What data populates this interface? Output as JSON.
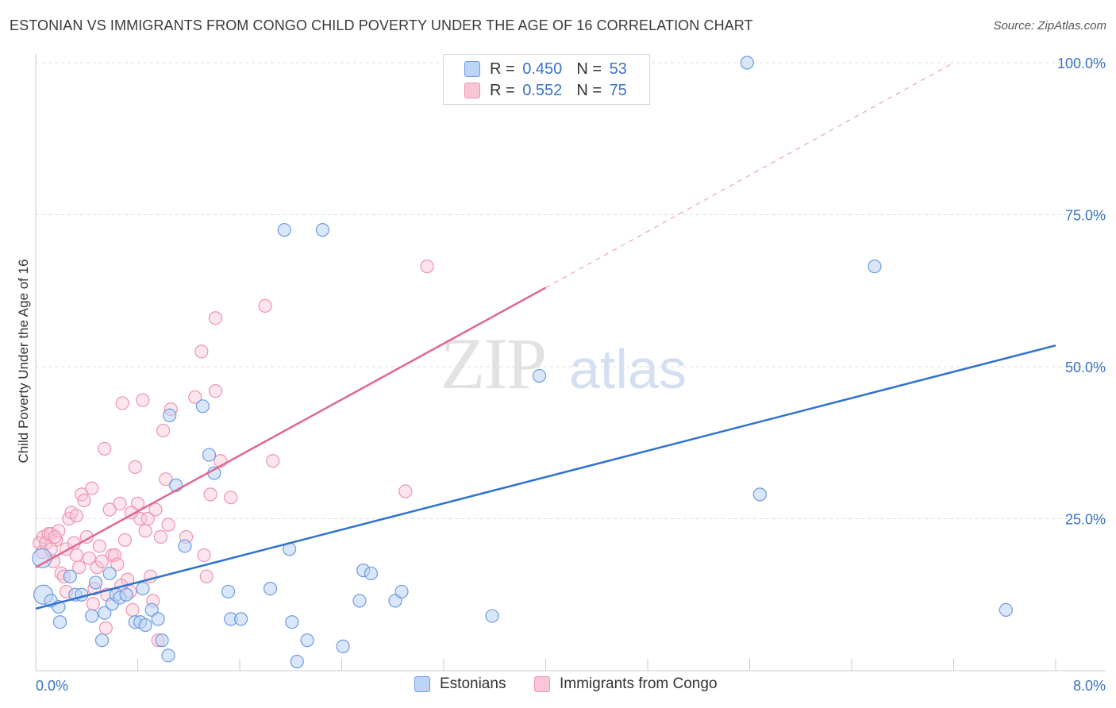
{
  "title": "ESTONIAN VS IMMIGRANTS FROM CONGO CHILD POVERTY UNDER THE AGE OF 16 CORRELATION CHART",
  "source": "Source: ZipAtlas.com",
  "watermark": {
    "zip": "ZIP",
    "atlas": "atlas"
  },
  "legend": {
    "rows": [
      {
        "r_label": "R =",
        "r_value": "0.450",
        "n_label": "N =",
        "n_value": "53"
      },
      {
        "r_label": "R =",
        "r_value": "0.552",
        "n_label": "N =",
        "n_value": "75"
      }
    ]
  },
  "bottom_legend": [
    "Estonians",
    "Immigrants from Congo"
  ],
  "colors": {
    "blue_fill": "#bcd4f5",
    "blue_stroke": "#6d9be0",
    "blue_line": "#2f72cf",
    "pink_fill": "#f9c6d6",
    "pink_stroke": "#ee93b1",
    "pink_line": "#e0688f",
    "axis_text": "#3a73c6",
    "grid": "#dcdcdc"
  },
  "chart_data": {
    "type": "scatter",
    "title": "ESTONIAN VS IMMIGRANTS FROM CONGO CHILD POVERTY UNDER THE AGE OF 16 CORRELATION CHART",
    "xlabel": "",
    "ylabel": "Child Poverty Under the Age of 16",
    "xlim": [
      0,
      8
    ],
    "ylim": [
      0,
      100
    ],
    "x_tick_labels": [
      {
        "value": 0,
        "label": "0.0%"
      },
      {
        "value": 8,
        "label": "8.0%"
      }
    ],
    "y_tick_labels": [
      {
        "value": 25,
        "label": "25.0%"
      },
      {
        "value": 50,
        "label": "50.0%"
      },
      {
        "value": 75,
        "label": "75.0%"
      },
      {
        "value": 100,
        "label": "100.0%"
      }
    ],
    "series": [
      {
        "name": "Estonians",
        "r": 0.45,
        "n": 53,
        "trend": {
          "x0": 0,
          "y0": 10.2,
          "x1": 8,
          "y1": 53.5
        },
        "points": [
          [
            0.05,
            18.5
          ],
          [
            0.06,
            12.5
          ],
          [
            0.12,
            11.5
          ],
          [
            0.18,
            10.5
          ],
          [
            0.19,
            8.0
          ],
          [
            0.27,
            15.5
          ],
          [
            0.31,
            12.5
          ],
          [
            0.36,
            12.5
          ],
          [
            0.44,
            9.0
          ],
          [
            0.47,
            14.5
          ],
          [
            0.52,
            5.0
          ],
          [
            0.54,
            9.5
          ],
          [
            0.6,
            11.0
          ],
          [
            0.63,
            12.5
          ],
          [
            0.66,
            12.0
          ],
          [
            0.71,
            12.5
          ],
          [
            0.78,
            8.0
          ],
          [
            0.82,
            8.0
          ],
          [
            0.84,
            13.5
          ],
          [
            0.86,
            7.5
          ],
          [
            0.91,
            10.0
          ],
          [
            0.96,
            8.5
          ],
          [
            0.99,
            5.0
          ],
          [
            1.04,
            2.5
          ],
          [
            1.05,
            42.0
          ],
          [
            1.31,
            43.5
          ],
          [
            1.17,
            20.5
          ],
          [
            1.36,
            35.5
          ],
          [
            1.4,
            32.5
          ],
          [
            1.51,
            13.0
          ],
          [
            1.53,
            8.5
          ],
          [
            1.61,
            8.5
          ],
          [
            1.84,
            13.5
          ],
          [
            1.95,
            72.5
          ],
          [
            1.99,
            20.0
          ],
          [
            2.01,
            8.0
          ],
          [
            2.05,
            1.5
          ],
          [
            2.13,
            5.0
          ],
          [
            2.25,
            72.5
          ],
          [
            2.41,
            4.0
          ],
          [
            2.54,
            11.5
          ],
          [
            2.57,
            16.5
          ],
          [
            2.63,
            16.0
          ],
          [
            2.82,
            11.5
          ],
          [
            2.87,
            13.0
          ],
          [
            3.58,
            9.0
          ],
          [
            3.95,
            48.5
          ],
          [
            5.58,
            100.0
          ],
          [
            5.68,
            29.0
          ],
          [
            6.58,
            66.5
          ],
          [
            7.61,
            10.0
          ],
          [
            1.1,
            30.5
          ],
          [
            0.58,
            16.0
          ]
        ]
      },
      {
        "name": "Immigrants from Congo",
        "r": 0.552,
        "n": 75,
        "trend": {
          "x0": 0,
          "y0": 17.0,
          "x1": 4.0,
          "y1": 63.0
        },
        "trend_extension": {
          "x0": 4.0,
          "y0": 63.0,
          "x1": 7.2,
          "y1": 100.0
        },
        "points": [
          [
            0.03,
            21.0
          ],
          [
            0.05,
            19.5
          ],
          [
            0.06,
            22.0
          ],
          [
            0.08,
            21.0
          ],
          [
            0.1,
            22.5
          ],
          [
            0.12,
            22.5
          ],
          [
            0.14,
            18.0
          ],
          [
            0.16,
            21.5
          ],
          [
            0.18,
            23.0
          ],
          [
            0.2,
            16.0
          ],
          [
            0.22,
            15.5
          ],
          [
            0.24,
            20.0
          ],
          [
            0.26,
            25.0
          ],
          [
            0.28,
            26.0
          ],
          [
            0.3,
            21.0
          ],
          [
            0.32,
            25.5
          ],
          [
            0.34,
            17.0
          ],
          [
            0.36,
            29.0
          ],
          [
            0.38,
            28.0
          ],
          [
            0.4,
            22.0
          ],
          [
            0.42,
            18.5
          ],
          [
            0.44,
            30.0
          ],
          [
            0.46,
            13.5
          ],
          [
            0.48,
            17.0
          ],
          [
            0.5,
            20.5
          ],
          [
            0.52,
            18.0
          ],
          [
            0.54,
            36.5
          ],
          [
            0.56,
            12.5
          ],
          [
            0.58,
            26.5
          ],
          [
            0.6,
            19.0
          ],
          [
            0.62,
            19.0
          ],
          [
            0.64,
            17.5
          ],
          [
            0.66,
            27.5
          ],
          [
            0.68,
            44.0
          ],
          [
            0.7,
            21.5
          ],
          [
            0.72,
            15.0
          ],
          [
            0.74,
            13.0
          ],
          [
            0.76,
            10.0
          ],
          [
            0.78,
            33.5
          ],
          [
            0.8,
            27.5
          ],
          [
            0.82,
            25.0
          ],
          [
            0.84,
            44.5
          ],
          [
            0.86,
            23.0
          ],
          [
            0.88,
            25.0
          ],
          [
            0.9,
            15.5
          ],
          [
            0.92,
            11.5
          ],
          [
            0.94,
            26.5
          ],
          [
            0.96,
            5.0
          ],
          [
            0.98,
            22.0
          ],
          [
            1.0,
            39.5
          ],
          [
            1.02,
            31.5
          ],
          [
            1.04,
            24.0
          ],
          [
            1.06,
            43.0
          ],
          [
            1.18,
            22.0
          ],
          [
            1.25,
            45.0
          ],
          [
            1.3,
            52.5
          ],
          [
            1.32,
            19.0
          ],
          [
            1.34,
            15.5
          ],
          [
            1.37,
            29.0
          ],
          [
            1.41,
            46.0
          ],
          [
            1.45,
            34.5
          ],
          [
            1.53,
            28.5
          ],
          [
            1.8,
            60.0
          ],
          [
            1.86,
            34.5
          ],
          [
            2.9,
            29.5
          ],
          [
            3.07,
            66.5
          ],
          [
            1.41,
            58.0
          ],
          [
            0.12,
            20.0
          ],
          [
            0.32,
            19.0
          ],
          [
            0.45,
            11.0
          ],
          [
            0.55,
            7.0
          ],
          [
            0.67,
            14.0
          ],
          [
            0.75,
            26.0
          ],
          [
            0.15,
            22.0
          ],
          [
            0.24,
            13.0
          ]
        ]
      }
    ]
  }
}
